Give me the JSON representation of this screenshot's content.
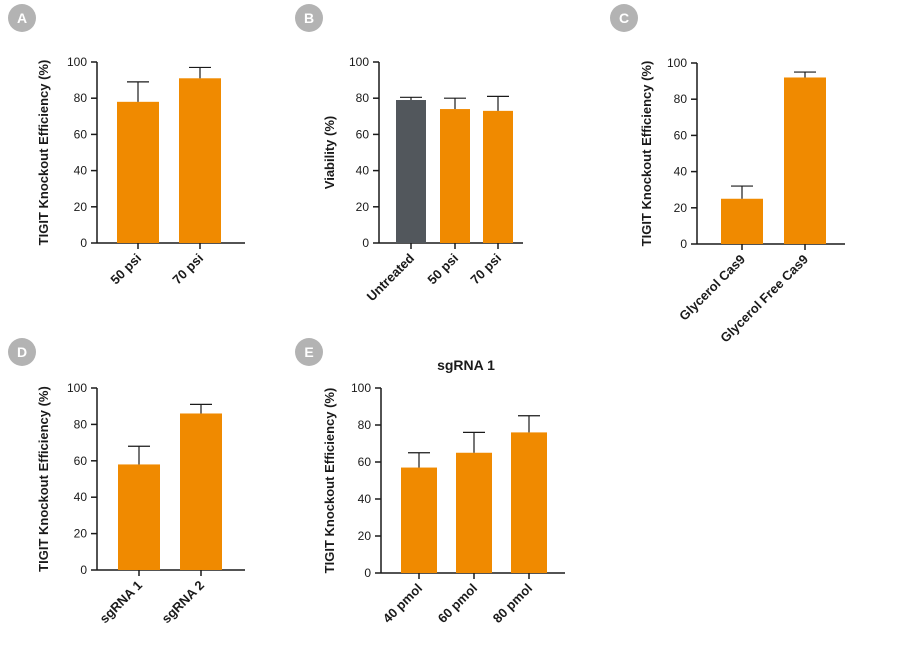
{
  "colors": {
    "bar": "#f08a00",
    "untreated": "#52575c",
    "badge": "#b3b3b3",
    "axis": "#1a1a1a"
  },
  "chart_data": [
    {
      "panel": "A",
      "type": "bar",
      "title": "",
      "xlabel": "",
      "ylabel": "TIGIT Knockout Efficiency (%)",
      "ylim": [
        0,
        100
      ],
      "yticks": [
        0,
        20,
        40,
        60,
        80,
        100
      ],
      "categories": [
        "50 psi",
        "70 psi"
      ],
      "values": [
        78,
        91
      ],
      "errors": [
        11,
        6
      ]
    },
    {
      "panel": "B",
      "type": "bar",
      "title": "",
      "xlabel": "",
      "ylabel": "Viability (%)",
      "ylim": [
        0,
        100
      ],
      "yticks": [
        0,
        20,
        40,
        60,
        80,
        100
      ],
      "categories": [
        "Untreated",
        "50 psi",
        "70 psi"
      ],
      "values": [
        79,
        74,
        73
      ],
      "errors": [
        1.5,
        6,
        8
      ],
      "bar_colors": [
        "#52575c",
        "#f08a00",
        "#f08a00"
      ]
    },
    {
      "panel": "C",
      "type": "bar",
      "title": "",
      "xlabel": "",
      "ylabel": "TIGIT Knockout Efficiency (%)",
      "ylim": [
        0,
        100
      ],
      "yticks": [
        0,
        20,
        40,
        60,
        80,
        100
      ],
      "categories": [
        "Glycerol Cas9",
        "Glycerol Free Cas9"
      ],
      "values": [
        25,
        92
      ],
      "errors": [
        7,
        3
      ]
    },
    {
      "panel": "D",
      "type": "bar",
      "title": "",
      "xlabel": "",
      "ylabel": "TIGIT Knockout Efficiency (%)",
      "ylim": [
        0,
        100
      ],
      "yticks": [
        0,
        20,
        40,
        60,
        80,
        100
      ],
      "categories": [
        "sgRNA 1",
        "sgRNA 2"
      ],
      "values": [
        58,
        86
      ],
      "errors": [
        10,
        5
      ]
    },
    {
      "panel": "E",
      "type": "bar",
      "title": "sgRNA 1",
      "xlabel": "",
      "ylabel": "TIGIT Knockout Efficiency (%)",
      "ylim": [
        0,
        100
      ],
      "yticks": [
        0,
        20,
        40,
        60,
        80,
        100
      ],
      "categories": [
        "40 pmol",
        "60 pmol",
        "80 pmol"
      ],
      "values": [
        57,
        65,
        76
      ],
      "errors": [
        8,
        11,
        9
      ]
    }
  ]
}
